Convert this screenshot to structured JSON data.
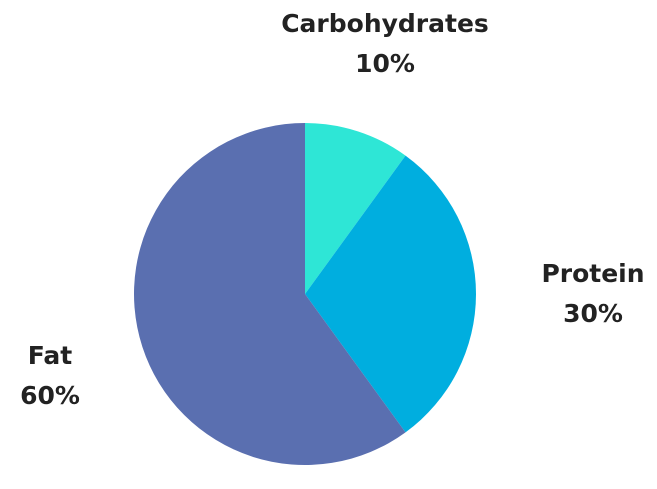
{
  "chart_data": {
    "type": "pie",
    "categories": [
      "Carbohydrates",
      "Protein",
      "Fat"
    ],
    "values": [
      10,
      30,
      60
    ],
    "value_labels": [
      "10%",
      "30%",
      "60%"
    ],
    "colors": [
      "#2ee6d6",
      "#00aedf",
      "#5a6fb0"
    ]
  }
}
